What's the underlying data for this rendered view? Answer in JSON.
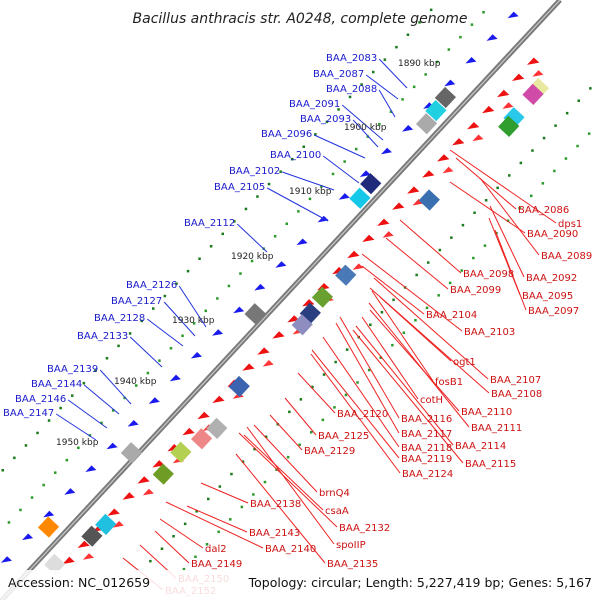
{
  "title": "Bacillus anthracis str. A0248, complete genome",
  "accession": "Accession: NC_012659",
  "topology": "Topology: circular; Length: 5,227,419 bp; Genes: 5,167",
  "colors": {
    "left_genes": "#0000dd",
    "right_genes": "#dd0000",
    "backbone": "#808080"
  },
  "scale_labels": [
    "1890 kbp",
    "1900 kbp",
    "1910 kbp",
    "1920 kbp",
    "1930 kbp",
    "1940 kbp",
    "1950 kbp"
  ],
  "left_labels": [
    "BAA_2083",
    "BAA_2087",
    "BAA_2088",
    "BAA_2091",
    "BAA_2093",
    "BAA_2096",
    "BAA_2100",
    "BAA_2102",
    "BAA_2105",
    "BAA_2112",
    "BAA_2126",
    "BAA_2127",
    "BAA_2128",
    "BAA_2133",
    "BAA_2139",
    "BAA_2144",
    "BAA_2146",
    "BAA_2147"
  ],
  "right_labels": [
    "BAA_2086",
    "dps1",
    "BAA_2090",
    "BAA_2089",
    "BAA_2098",
    "BAA_2092",
    "BAA_2099",
    "BAA_2095",
    "BAA_2097",
    "BAA_2104",
    "BAA_2103",
    "ogt1",
    "fosB1",
    "BAA_2107",
    "BAA_2108",
    "BAA_2110",
    "cotH",
    "BAA_2111",
    "BAA_2116",
    "BAA_2120",
    "BAA_2117",
    "BAA_2114",
    "BAA_2125",
    "BAA_2118",
    "BAA_2119",
    "BAA_2115",
    "BAA_2129",
    "BAA_2124",
    "brnQ4",
    "BAA_2138",
    "csaA",
    "BAA_2132",
    "BAA_2143",
    "dal2",
    "BAA_2140",
    "spoIIP",
    "BAA_2149",
    "BAA_2135",
    "BAA_2150",
    "BAA_2152"
  ]
}
